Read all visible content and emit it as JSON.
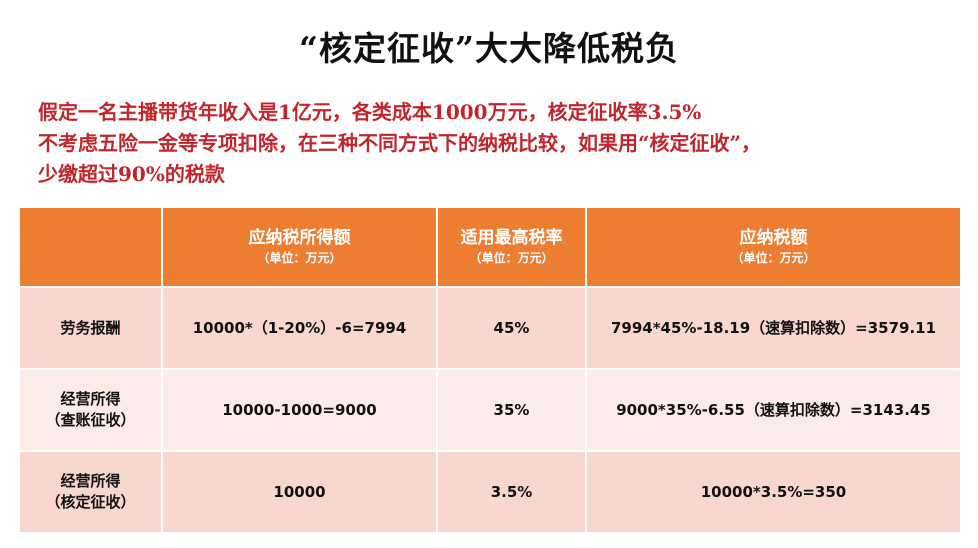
{
  "title": "“核定征收”大大降低税负",
  "intro": {
    "line1": "假定一名主播带货年收入是1亿元，各类成本1000万元，核定征收率3.5%",
    "line2": "不考虑五险一金等专项扣除，在三种不同方式下的纳税比较，如果用“核定征收”，",
    "line3": "少缴超过90%的税款"
  },
  "table": {
    "headers": [
      {
        "label": "",
        "unit": ""
      },
      {
        "label": "应纳税所得额",
        "unit": "（单位：万元）"
      },
      {
        "label": "适用最高税率",
        "unit": "（单位：万元）"
      },
      {
        "label": "应纳税额",
        "unit": "（单位：万元）"
      }
    ],
    "rows": [
      {
        "type_line1": "劳务报酬",
        "type_line2": "",
        "taxable_income": "10000*（1-20%）-6=7994",
        "rate": "45%",
        "tax": "7994*45%-18.19（速算扣除数）=3579.11"
      },
      {
        "type_line1": "经营所得",
        "type_line2": "（查账征收）",
        "taxable_income": "10000-1000=9000",
        "rate": "35%",
        "tax": "9000*35%-6.55（速算扣除数）=3143.45"
      },
      {
        "type_line1": "经营所得",
        "type_line2": "（核定征收）",
        "taxable_income": "10000",
        "rate": "3.5%",
        "tax": "10000*3.5%=350"
      }
    ]
  }
}
